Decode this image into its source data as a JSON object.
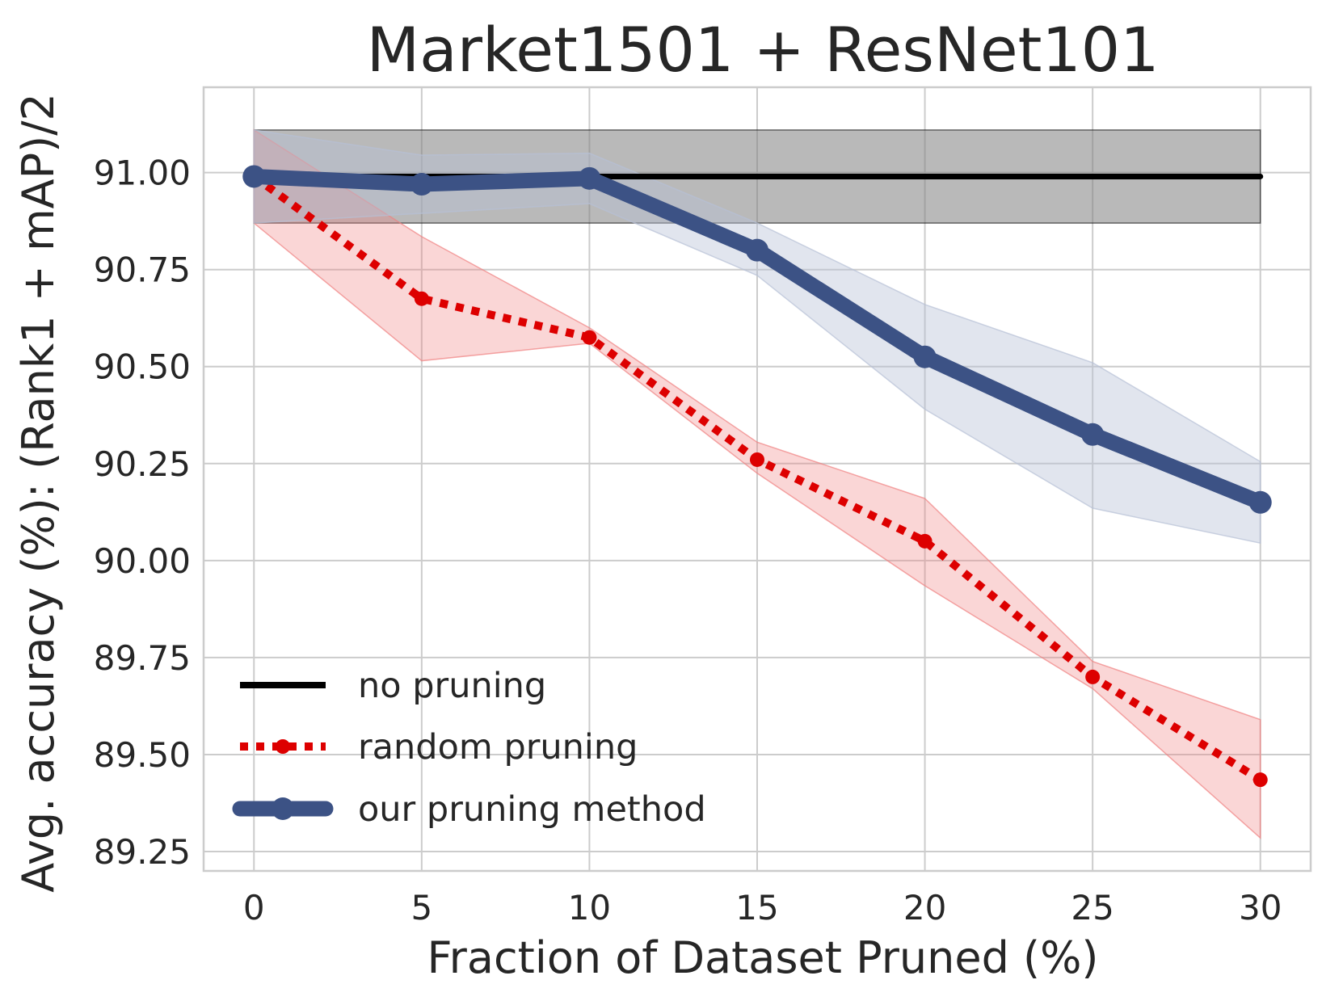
{
  "chart_data": {
    "type": "line",
    "title": "Market1501 + ResNet101",
    "xlabel": "Fraction of Dataset Pruned (%)",
    "ylabel": "Avg. accuracy (%): (Rank1 + mAP)/2",
    "xlim": [
      -1.5,
      31.5
    ],
    "ylim": [
      89.2,
      91.22
    ],
    "x_ticks": [
      0,
      5,
      10,
      15,
      20,
      25,
      30
    ],
    "y_ticks": [
      89.25,
      89.5,
      89.75,
      90.0,
      90.25,
      90.5,
      90.75,
      91.0
    ],
    "y_tick_labels": [
      "89.25",
      "89.50",
      "89.75",
      "90.00",
      "90.25",
      "90.50",
      "90.75",
      "91.00"
    ],
    "grid": true,
    "legend_position": "lower-left",
    "series": [
      {
        "name": "no pruning",
        "style": "solid",
        "color": "#000000",
        "band_color": "#808080",
        "x": [
          0,
          30
        ],
        "values": [
          90.99,
          90.99
        ],
        "lower": [
          90.87,
          90.87
        ],
        "upper": [
          91.11,
          91.11
        ]
      },
      {
        "name": "random pruning",
        "style": "dotted",
        "color": "#dd0000",
        "band_color": "#f08080",
        "x": [
          0,
          5,
          10,
          15,
          20,
          25,
          30
        ],
        "values": [
          90.99,
          90.675,
          90.575,
          90.26,
          90.05,
          89.7,
          89.435
        ],
        "lower": [
          90.87,
          90.515,
          90.56,
          90.225,
          89.935,
          89.67,
          89.285
        ],
        "upper": [
          91.11,
          90.835,
          90.6,
          90.305,
          90.16,
          89.74,
          89.59
        ]
      },
      {
        "name": "our pruning method",
        "style": "solid-thick",
        "color": "#3c5285",
        "band_color": "#b7c1d6",
        "x": [
          0,
          5,
          10,
          15,
          20,
          25,
          30
        ],
        "values": [
          90.99,
          90.97,
          90.985,
          90.8,
          90.525,
          90.325,
          90.15
        ],
        "lower": [
          90.87,
          90.895,
          90.92,
          90.735,
          90.39,
          90.135,
          90.045
        ],
        "upper": [
          91.11,
          91.045,
          91.05,
          90.87,
          90.66,
          90.51,
          90.255
        ]
      }
    ]
  }
}
